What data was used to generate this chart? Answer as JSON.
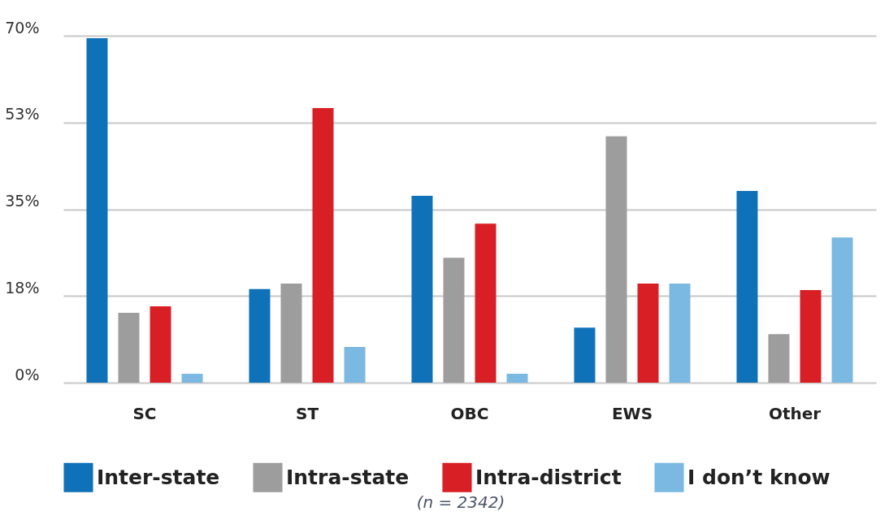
{
  "chart_data": {
    "type": "bar",
    "categories": [
      "SC",
      "ST",
      "OBC",
      "EWS",
      "Other"
    ],
    "series": [
      {
        "name": "Inter-state",
        "color": "#0f72b8",
        "values": [
          69.5,
          18.9,
          37.7,
          11.1,
          38.7
        ]
      },
      {
        "name": "Intra-state",
        "color": "#9d9d9d",
        "values": [
          14.1,
          20,
          25.2,
          49.7,
          9.8
        ]
      },
      {
        "name": "Intra-district",
        "color": "#d91f26",
        "values": [
          15.4,
          55.4,
          32.1,
          20,
          18.7
        ]
      },
      {
        "name": "I don’t know",
        "color": "#7bb9e3",
        "values": [
          1.8,
          7.2,
          1.8,
          20,
          29.3
        ]
      }
    ],
    "ylim": [
      0,
      70
    ],
    "yticks": [
      {
        "value": 0,
        "label": "0%"
      },
      {
        "value": 17.5,
        "label": "18%"
      },
      {
        "value": 35,
        "label": "35%"
      },
      {
        "value": 52.5,
        "label": "53%"
      },
      {
        "value": 70,
        "label": "70%"
      }
    ],
    "grid": "y",
    "legend": "bottom",
    "annotations": [
      "(n = 2342)"
    ]
  }
}
